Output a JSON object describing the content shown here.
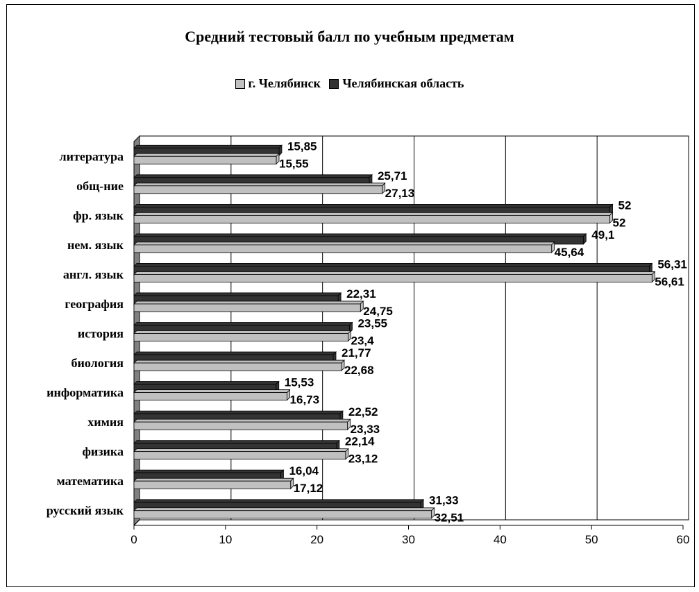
{
  "chart_data": {
    "type": "bar",
    "orientation": "horizontal",
    "title": "Средний тестовый балл по учебным предметам",
    "categories": [
      "литература",
      "общ-ние",
      "фр. язык",
      "нем. язык",
      "англ. язык",
      "география",
      "история",
      "биология",
      "информатика",
      "химия",
      "физика",
      "математика",
      "русский язык"
    ],
    "series": [
      {
        "name": "Челябинская область",
        "color": "#333333",
        "values": [
          15.85,
          25.71,
          52,
          49.1,
          56.31,
          22.31,
          23.55,
          21.77,
          15.53,
          22.52,
          22.14,
          16.04,
          31.33
        ],
        "labels": [
          "15,85",
          "25,71",
          "52",
          "49,1",
          "56,31",
          "22,31",
          "23,55",
          "21,77",
          "15,53",
          "22,52",
          "22,14",
          "16,04",
          "31,33"
        ]
      },
      {
        "name": "г. Челябинск",
        "color": "#c0c0c0",
        "values": [
          15.55,
          27.13,
          52,
          45.64,
          56.61,
          24.75,
          23.4,
          22.68,
          16.73,
          23.33,
          23.12,
          17.12,
          32.51
        ],
        "labels": [
          "15,55",
          "27,13",
          "52",
          "45,64",
          "56,61",
          "24,75",
          "23,4",
          "22,68",
          "16,73",
          "23,33",
          "23,12",
          "17,12",
          "32,51"
        ]
      }
    ],
    "xlim": [
      0,
      60
    ],
    "ticks": [
      0,
      10,
      20,
      30,
      40,
      50,
      60
    ],
    "grid": true,
    "legend_order": [
      "г. Челябинск",
      "Челябинская область"
    ],
    "legend_position": "top"
  }
}
